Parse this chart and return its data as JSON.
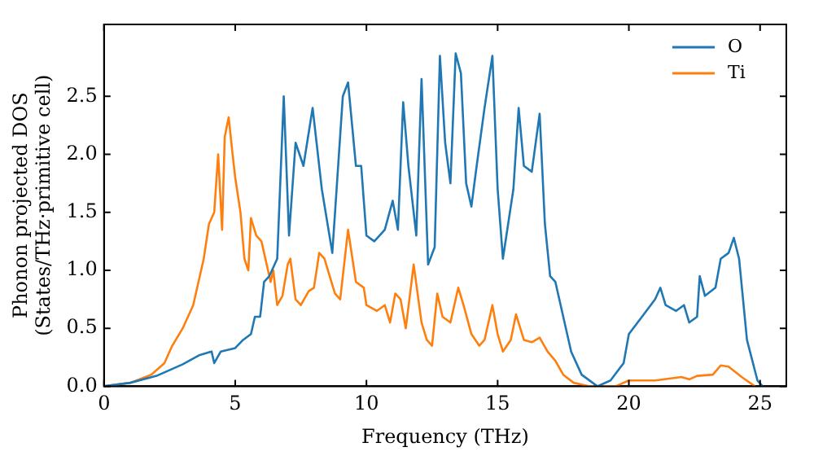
{
  "chart_data": {
    "type": "line",
    "xlabel": "Frequency (THz)",
    "ylabel": "Phonon projected DOS\n(States/THz·primitive cell)",
    "xlim": [
      0,
      26
    ],
    "ylim": [
      0,
      3.12
    ],
    "xticks": [
      0,
      5,
      10,
      15,
      20,
      25
    ],
    "yticks": [
      {
        "value": 0,
        "label": "0.0"
      },
      0.5,
      {
        "value": 1,
        "label": "1.0"
      },
      1.5,
      {
        "value": 2,
        "label": "2.0"
      },
      2.5
    ],
    "grid": false,
    "legend": "top right",
    "marker": "none",
    "line_style": "solid",
    "series": [
      {
        "name": "O",
        "color": "#1f77b4",
        "x": [
          0,
          1,
          2,
          3,
          3.65,
          4.1,
          4.2,
          4.45,
          5,
          5.3,
          5.6,
          5.75,
          5.95,
          6.1,
          6.3,
          6.6,
          6.85,
          7.05,
          7.3,
          7.6,
          7.95,
          8.3,
          8.7,
          9.1,
          9.3,
          9.6,
          9.8,
          10,
          10.3,
          10.7,
          11,
          11.2,
          11.4,
          11.6,
          11.9,
          12.1,
          12.35,
          12.6,
          12.8,
          13,
          13.2,
          13.4,
          13.6,
          13.8,
          14,
          14.2,
          14.5,
          14.8,
          15,
          15.2,
          15.6,
          15.8,
          16,
          16.3,
          16.6,
          16.8,
          17,
          17.2,
          17.5,
          17.8,
          18.2,
          18.8,
          19.3,
          19.8,
          20,
          20.5,
          21,
          21.2,
          21.4,
          21.8,
          22.1,
          22.3,
          22.6,
          22.7,
          22.9,
          23.3,
          23.5,
          23.8,
          24,
          24.2,
          24.5,
          24.9,
          25.1
        ],
        "values": [
          0,
          0.03,
          0.09,
          0.19,
          0.27,
          0.3,
          0.2,
          0.3,
          0.33,
          0.4,
          0.45,
          0.6,
          0.6,
          0.9,
          0.95,
          1.1,
          2.5,
          1.3,
          2.1,
          1.9,
          2.4,
          1.7,
          1.15,
          2.5,
          2.62,
          1.9,
          1.9,
          1.3,
          1.25,
          1.35,
          1.6,
          1.35,
          2.45,
          1.9,
          1.3,
          2.65,
          1.05,
          1.2,
          2.85,
          2.1,
          1.75,
          2.87,
          2.7,
          1.75,
          1.55,
          1.9,
          2.4,
          2.85,
          1.7,
          1.1,
          1.7,
          2.4,
          1.9,
          1.85,
          2.35,
          1.4,
          0.95,
          0.9,
          0.6,
          0.3,
          0.1,
          0,
          0.05,
          0.2,
          0.45,
          0.6,
          0.75,
          0.85,
          0.7,
          0.65,
          0.7,
          0.55,
          0.6,
          0.95,
          0.78,
          0.85,
          1.1,
          1.15,
          1.28,
          1.1,
          0.4,
          0.05,
          0
        ]
      },
      {
        "name": "Ti",
        "color": "#ff7f0e",
        "x": [
          0,
          1,
          1.8,
          2.3,
          2.6,
          3,
          3.4,
          3.8,
          4,
          4.2,
          4.35,
          4.5,
          4.6,
          4.75,
          4.9,
          5,
          5.2,
          5.35,
          5.5,
          5.6,
          5.8,
          6,
          6.2,
          6.35,
          6.45,
          6.6,
          6.8,
          7,
          7.1,
          7.3,
          7.5,
          7.8,
          8,
          8.2,
          8.4,
          8.6,
          8.8,
          9,
          9.3,
          9.6,
          9.9,
          10,
          10.4,
          10.7,
          10.9,
          11.1,
          11.3,
          11.5,
          11.8,
          12.1,
          12.3,
          12.5,
          12.7,
          12.9,
          13.2,
          13.5,
          13.7,
          14,
          14.3,
          14.5,
          14.8,
          15,
          15.2,
          15.5,
          15.7,
          16,
          16.3,
          16.6,
          16.9,
          17.2,
          17.5,
          17.9,
          18.5,
          19.5,
          20,
          21,
          22,
          22.3,
          22.6,
          23.2,
          23.5,
          23.8,
          24.3,
          24.8
        ],
        "values": [
          0,
          0.03,
          0.1,
          0.2,
          0.35,
          0.5,
          0.7,
          1.1,
          1.4,
          1.5,
          2,
          1.35,
          2.15,
          2.32,
          2,
          1.8,
          1.5,
          1.1,
          1,
          1.45,
          1.3,
          1.25,
          1.05,
          0.9,
          1,
          0.7,
          0.78,
          1.05,
          1.1,
          0.75,
          0.7,
          0.82,
          0.85,
          1.15,
          1.1,
          0.95,
          0.8,
          0.75,
          1.35,
          0.9,
          0.85,
          0.7,
          0.65,
          0.7,
          0.55,
          0.8,
          0.75,
          0.5,
          1.05,
          0.55,
          0.4,
          0.35,
          0.8,
          0.6,
          0.55,
          0.85,
          0.7,
          0.45,
          0.35,
          0.4,
          0.7,
          0.45,
          0.3,
          0.4,
          0.62,
          0.4,
          0.38,
          0.42,
          0.3,
          0.22,
          0.1,
          0.03,
          0,
          0,
          0.05,
          0.05,
          0.08,
          0.06,
          0.09,
          0.1,
          0.18,
          0.17,
          0.08,
          0
        ]
      }
    ]
  }
}
